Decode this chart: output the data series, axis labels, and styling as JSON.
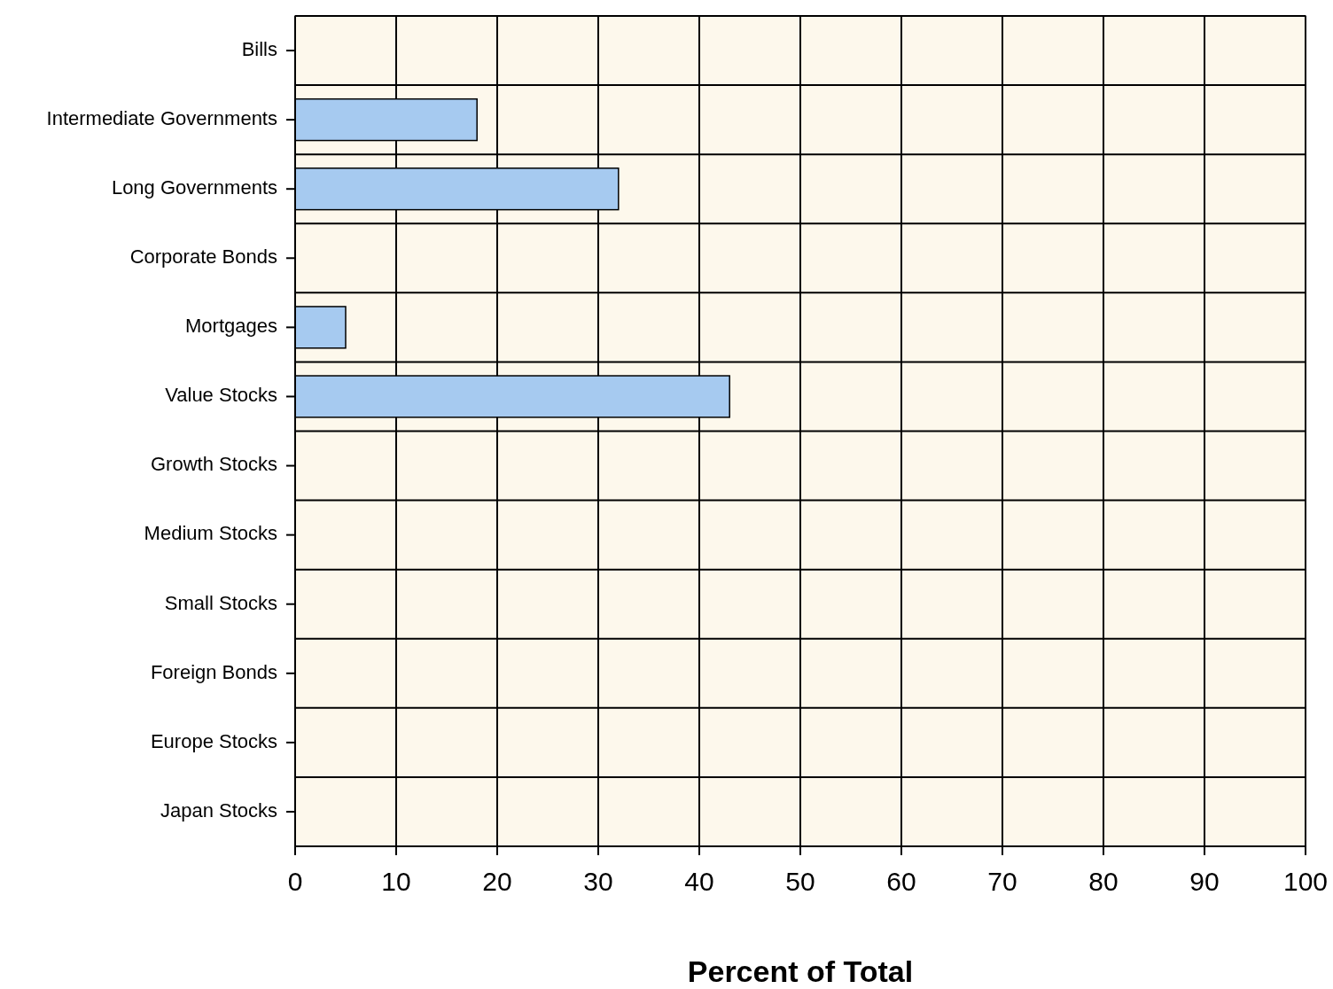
{
  "chart_data": {
    "type": "bar",
    "orientation": "horizontal",
    "xlabel": "Percent of Total",
    "categories": [
      "Bills",
      "Intermediate Governments",
      "Long Governments",
      "Corporate Bonds",
      "Mortgages",
      "Value Stocks",
      "Growth Stocks",
      "Medium Stocks",
      "Small Stocks",
      "Foreign Bonds",
      "Europe Stocks",
      "Japan Stocks"
    ],
    "values": [
      0,
      18,
      32,
      0,
      5,
      43,
      0,
      0,
      0,
      0,
      0,
      0
    ],
    "color": "#a6caf0",
    "xlim": [
      0,
      100
    ],
    "xticks": [
      0,
      10,
      20,
      30,
      40,
      50,
      60,
      70,
      80,
      90,
      100
    ],
    "grid": true
  }
}
